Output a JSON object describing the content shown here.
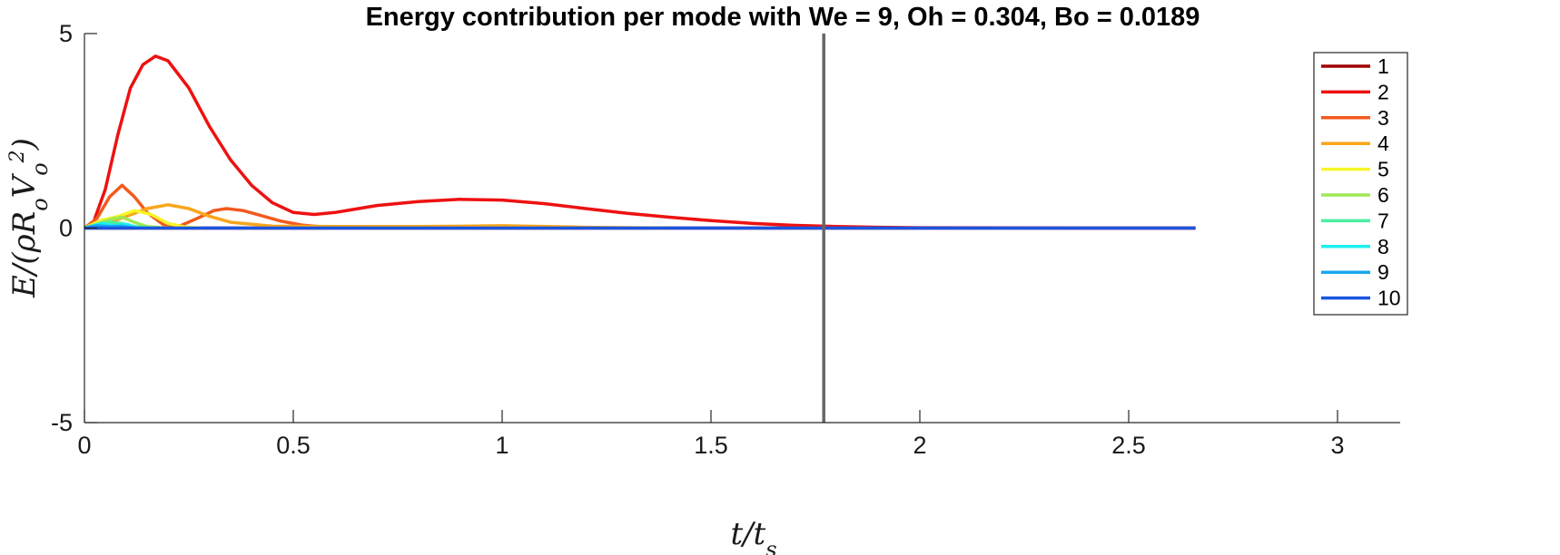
{
  "chart_data": {
    "type": "line",
    "title": "Energy contribution per mode with We = 9, Oh = 0.304, Bo = 0.0189",
    "xlabel": "t/t_s",
    "ylabel": "E/(ρR_oV_o²)",
    "xlim": [
      0,
      3.15
    ],
    "ylim": [
      -5,
      5
    ],
    "x_ticks": [
      "0",
      "0.5",
      "1",
      "1.5",
      "2",
      "2.5",
      "3"
    ],
    "y_ticks": [
      "-5",
      "0",
      "5"
    ],
    "vertical_line": {
      "x": 1.77,
      "color": "#666666"
    },
    "legend_position": "top-right",
    "series": [
      {
        "name": "1",
        "color": "#a00000",
        "x": [
          0,
          2.66
        ],
        "y": [
          0,
          0
        ]
      },
      {
        "name": "2",
        "color": "#ee1111",
        "x": [
          0,
          0.02,
          0.05,
          0.08,
          0.11,
          0.14,
          0.17,
          0.2,
          0.25,
          0.3,
          0.35,
          0.4,
          0.45,
          0.5,
          0.55,
          0.6,
          0.7,
          0.8,
          0.9,
          1.0,
          1.1,
          1.2,
          1.3,
          1.4,
          1.5,
          1.6,
          1.7,
          1.8,
          1.9,
          2.0,
          2.2,
          2.4,
          2.66
        ],
        "y": [
          0,
          0.1,
          1.0,
          2.4,
          3.6,
          4.2,
          4.42,
          4.3,
          3.6,
          2.6,
          1.75,
          1.1,
          0.65,
          0.4,
          0.35,
          0.4,
          0.58,
          0.68,
          0.74,
          0.72,
          0.63,
          0.5,
          0.38,
          0.28,
          0.19,
          0.12,
          0.07,
          0.04,
          0.02,
          0.01,
          0.005,
          0,
          0
        ]
      },
      {
        "name": "3",
        "color": "#f25a1e",
        "x": [
          0,
          0.03,
          0.06,
          0.09,
          0.12,
          0.15,
          0.19,
          0.23,
          0.27,
          0.31,
          0.34,
          0.38,
          0.42,
          0.47,
          0.52,
          0.57,
          0.62,
          0.7,
          0.8
        ],
        "y": [
          0,
          0.25,
          0.8,
          1.1,
          0.8,
          0.4,
          0.08,
          0.06,
          0.25,
          0.45,
          0.5,
          0.45,
          0.33,
          0.18,
          0.08,
          0.03,
          0.01,
          0,
          0
        ]
      },
      {
        "name": "4",
        "color": "#f9a51a",
        "x": [
          0,
          0.05,
          0.1,
          0.15,
          0.2,
          0.25,
          0.3,
          0.35,
          0.45,
          0.6,
          0.8,
          1.0,
          1.2,
          1.4
        ],
        "y": [
          0,
          0.1,
          0.3,
          0.5,
          0.6,
          0.5,
          0.3,
          0.15,
          0.05,
          0.04,
          0.04,
          0.06,
          0.02,
          0
        ]
      },
      {
        "name": "5",
        "color": "#f5f52a",
        "x": [
          0,
          0.04,
          0.08,
          0.12,
          0.16,
          0.2,
          0.24,
          0.28
        ],
        "y": [
          0,
          0.2,
          0.3,
          0.45,
          0.35,
          0.12,
          0.03,
          0
        ]
      },
      {
        "name": "6",
        "color": "#9ee855",
        "x": [
          0,
          0.03,
          0.06,
          0.09,
          0.12,
          0.15,
          0.2
        ],
        "y": [
          0,
          0.1,
          0.22,
          0.28,
          0.15,
          0.04,
          0
        ]
      },
      {
        "name": "7",
        "color": "#4af0a0",
        "x": [
          0,
          0.03,
          0.06,
          0.09,
          0.12,
          0.16
        ],
        "y": [
          0,
          0.08,
          0.15,
          0.12,
          0.04,
          0
        ]
      },
      {
        "name": "8",
        "color": "#1ef0f0",
        "x": [
          0,
          0.04,
          0.07,
          0.1,
          0.13
        ],
        "y": [
          0,
          0.12,
          0.06,
          0.1,
          0
        ]
      },
      {
        "name": "9",
        "color": "#1aa8ee",
        "x": [
          0,
          0.03,
          0.06,
          0.09,
          0.12
        ],
        "y": [
          0,
          0.06,
          0.04,
          0.05,
          0
        ]
      },
      {
        "name": "10",
        "color": "#1a55e0",
        "x": [
          0,
          2.66
        ],
        "y": [
          0,
          0
        ]
      }
    ]
  }
}
